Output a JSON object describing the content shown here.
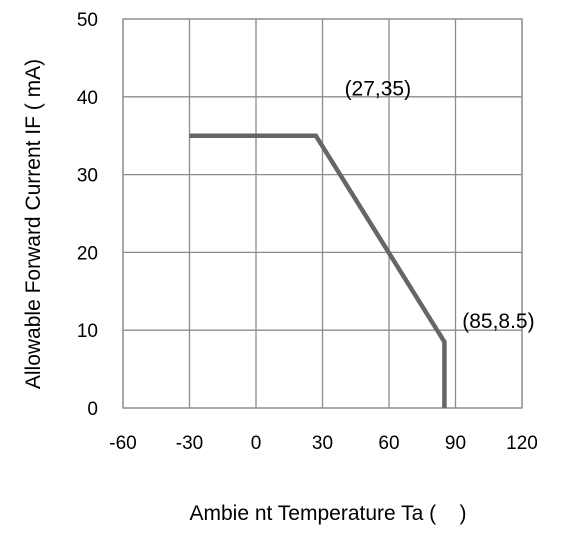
{
  "chart_data": {
    "type": "line",
    "title": "",
    "xlabel": "Ambie nt Temperature Ta (    )",
    "ylabel": "Allowable Forward Current IF ( mA)",
    "xlim": [
      -60,
      120
    ],
    "ylim": [
      0,
      50
    ],
    "x_ticks": [
      "-60",
      "-30",
      "0",
      "30",
      "60",
      "90",
      "120"
    ],
    "y_ticks": [
      "0",
      "10",
      "20",
      "30",
      "40",
      "50"
    ],
    "grid": true,
    "series": [
      {
        "x": [
          -30,
          27,
          85,
          85
        ],
        "y": [
          35,
          35,
          8.5,
          0
        ],
        "color": "#666666"
      }
    ],
    "annotations": [
      {
        "text": "(27,35)",
        "x": 27,
        "y": 35
      },
      {
        "text": "(85,8.5)",
        "x": 85,
        "y": 8.5
      }
    ]
  }
}
